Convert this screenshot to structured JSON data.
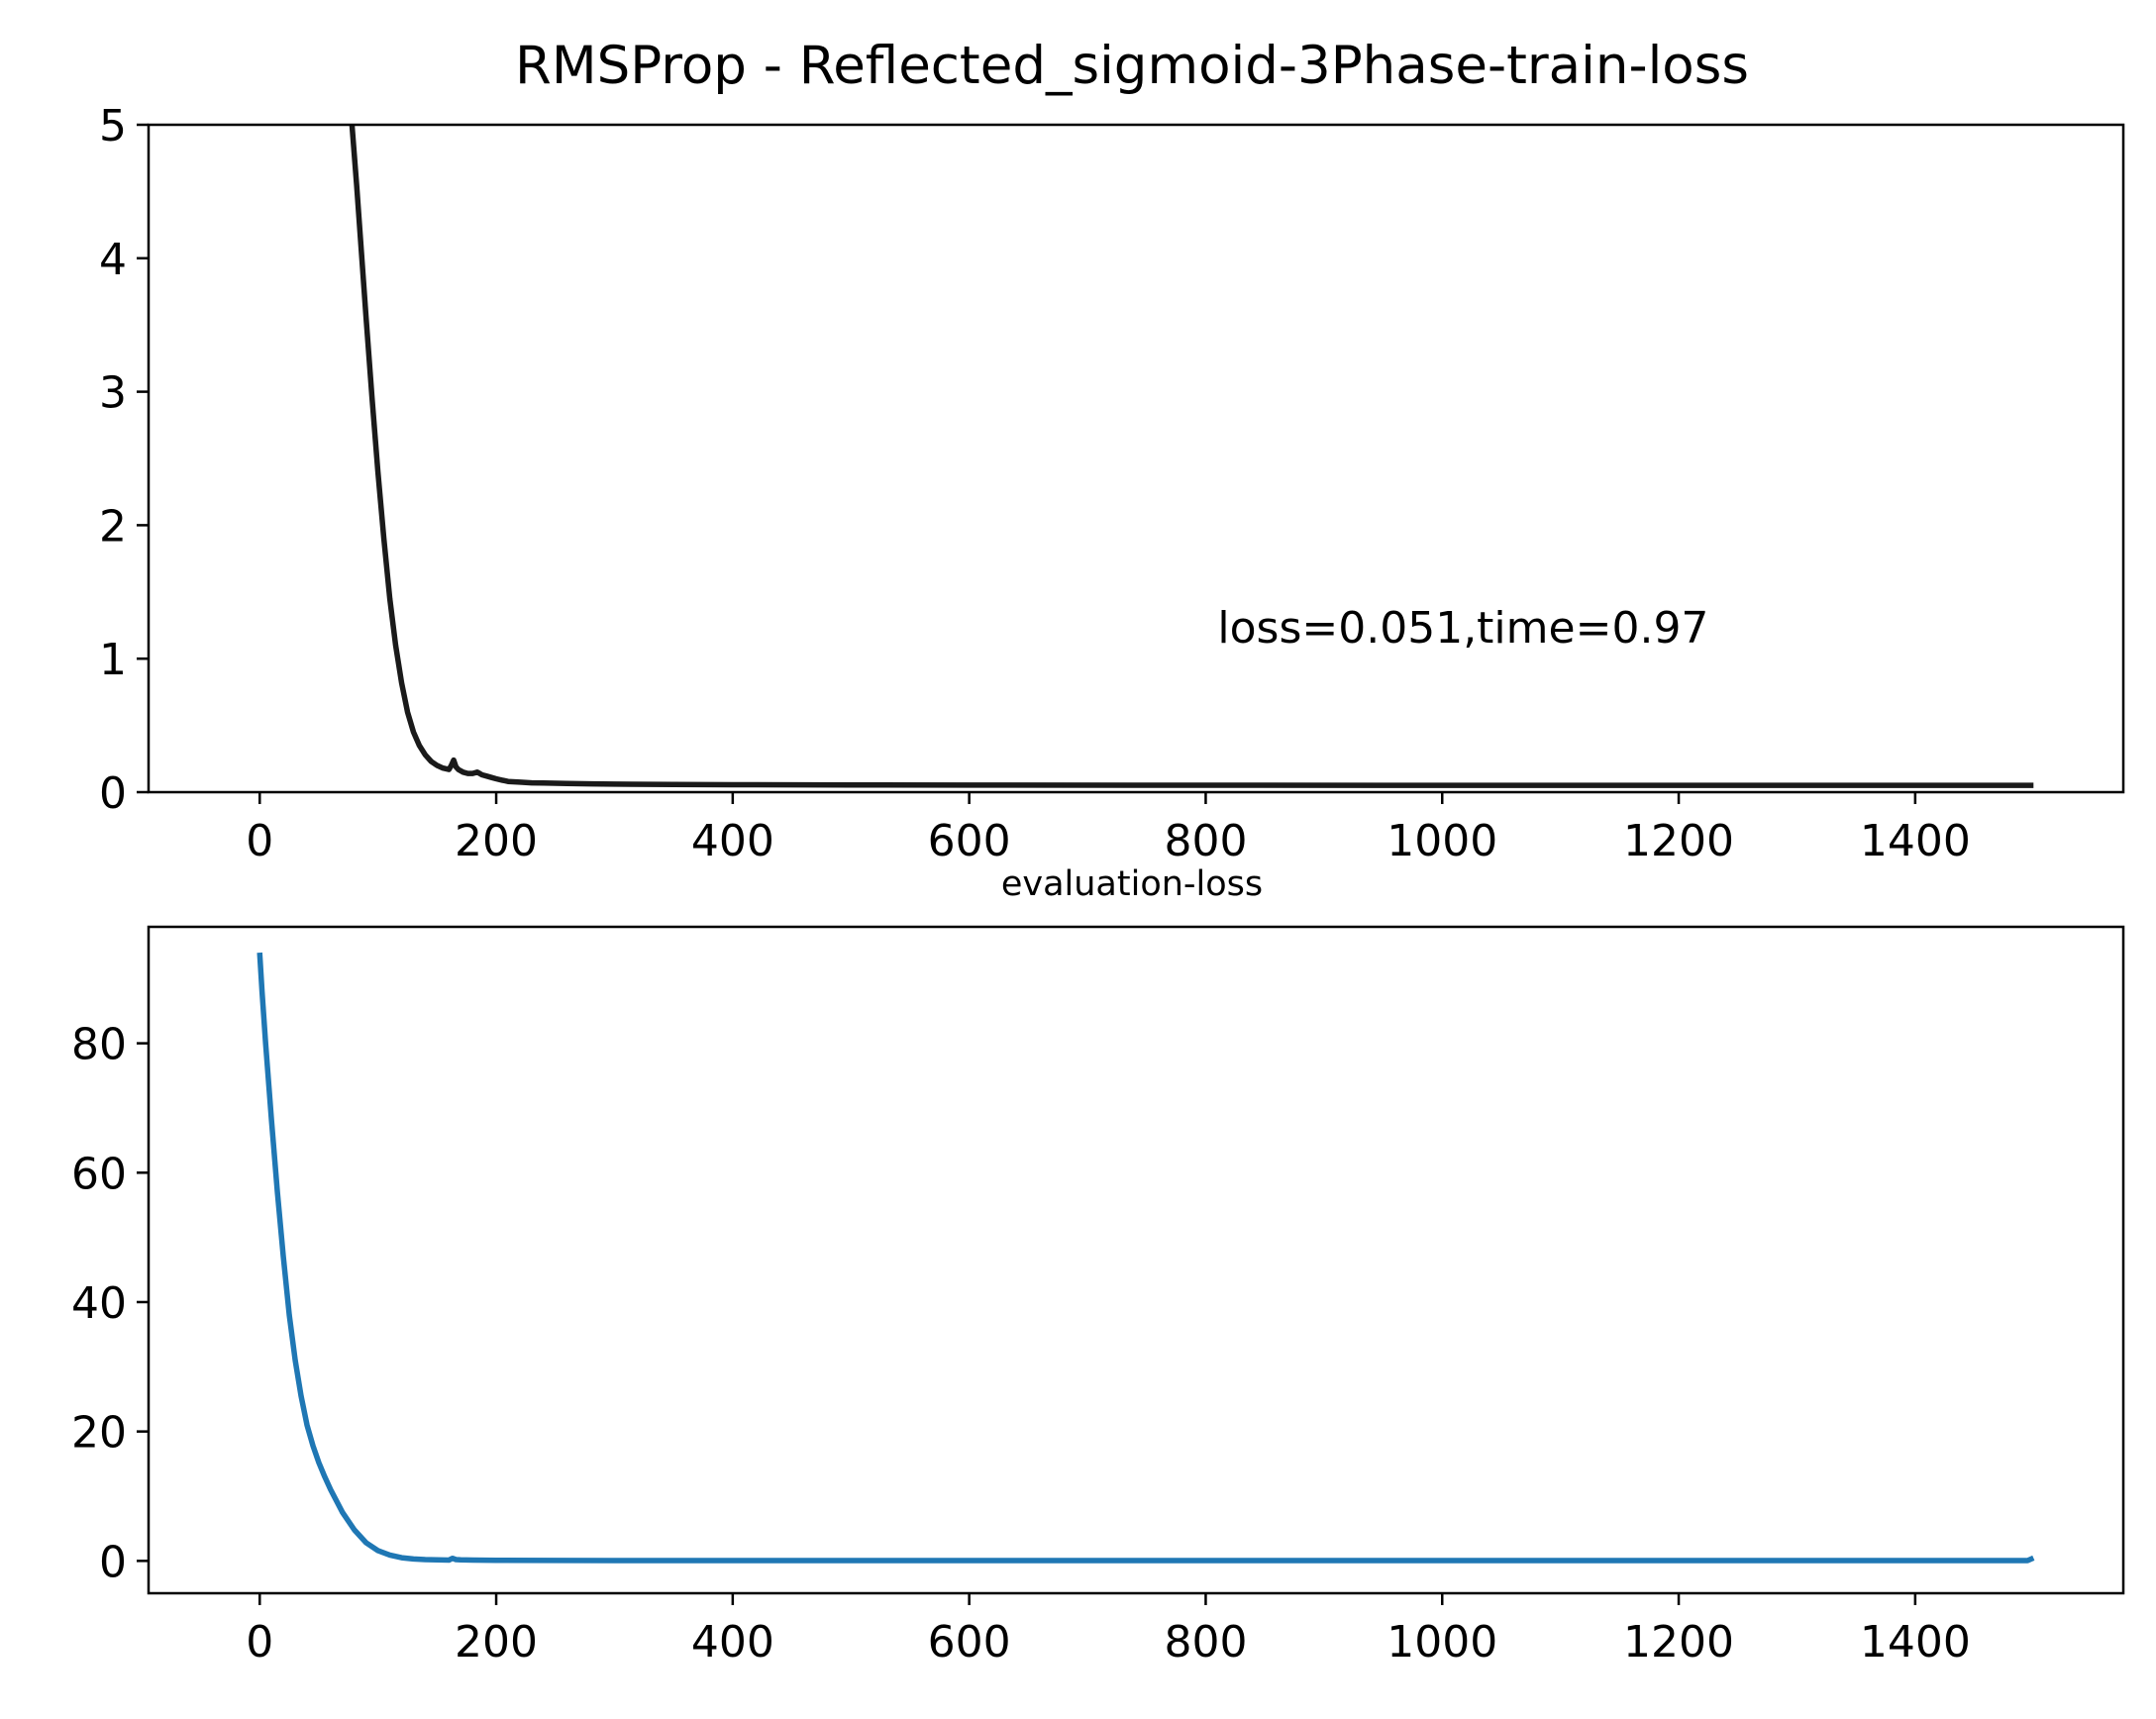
{
  "chart_data": [
    {
      "type": "line",
      "title": "RMSProp - Reflected_sigmoid-3Phase-train-loss",
      "xlabel": "",
      "ylabel": "",
      "xlim": [
        -94,
        1576
      ],
      "ylim": [
        0,
        5
      ],
      "xticks": [
        0,
        200,
        400,
        600,
        800,
        1000,
        1200,
        1400
      ],
      "yticks": [
        0,
        1,
        2,
        3,
        4,
        5
      ],
      "grid": false,
      "annotation": {
        "text": "loss=0.051,time=0.97",
        "x": 810,
        "y": 1.12
      },
      "series": [
        {
          "color": "#1a1a1a",
          "x": [
            78,
            82,
            86,
            90,
            95,
            100,
            105,
            110,
            115,
            120,
            125,
            130,
            135,
            140,
            145,
            150,
            155,
            160,
            162,
            164,
            166,
            168,
            172,
            176,
            180,
            184,
            186,
            188,
            192,
            196,
            200,
            205,
            210,
            220,
            230,
            240,
            260,
            280,
            300,
            350,
            400,
            500,
            600,
            800,
            1000,
            1200,
            1400,
            1500
          ],
          "y": [
            5.0,
            4.55,
            4.05,
            3.55,
            2.95,
            2.4,
            1.9,
            1.45,
            1.1,
            0.82,
            0.6,
            0.45,
            0.35,
            0.28,
            0.23,
            0.2,
            0.18,
            0.17,
            0.2,
            0.24,
            0.19,
            0.17,
            0.15,
            0.14,
            0.14,
            0.15,
            0.14,
            0.13,
            0.12,
            0.11,
            0.1,
            0.09,
            0.08,
            0.075,
            0.07,
            0.068,
            0.065,
            0.062,
            0.06,
            0.058,
            0.056,
            0.054,
            0.053,
            0.052,
            0.051,
            0.051,
            0.051,
            0.051
          ]
        }
      ]
    },
    {
      "type": "line",
      "title": "evaluation-loss",
      "xlabel": "",
      "ylabel": "",
      "xlim": [
        -94,
        1576
      ],
      "ylim": [
        -5,
        98
      ],
      "xticks": [
        0,
        200,
        400,
        600,
        800,
        1000,
        1200,
        1400
      ],
      "yticks": [
        0,
        20,
        40,
        60,
        80
      ],
      "grid": false,
      "series": [
        {
          "color": "#1f77b4",
          "x": [
            0,
            2,
            5,
            10,
            15,
            20,
            25,
            30,
            35,
            40,
            45,
            50,
            55,
            60,
            70,
            80,
            90,
            100,
            110,
            120,
            130,
            140,
            150,
            160,
            163,
            166,
            170,
            180,
            200,
            250,
            300,
            400,
            600,
            800,
            1000,
            1200,
            1400,
            1495,
            1500
          ],
          "y": [
            94,
            88,
            80,
            68,
            57,
            47,
            38,
            31,
            25.5,
            21,
            17.8,
            15.2,
            13,
            11,
            7.5,
            4.8,
            2.8,
            1.6,
            0.9,
            0.5,
            0.3,
            0.2,
            0.15,
            0.12,
            0.4,
            0.2,
            0.15,
            0.12,
            0.1,
            0.06,
            0.05,
            0.05,
            0.05,
            0.05,
            0.05,
            0.05,
            0.05,
            0.05,
            0.45
          ]
        }
      ]
    }
  ]
}
